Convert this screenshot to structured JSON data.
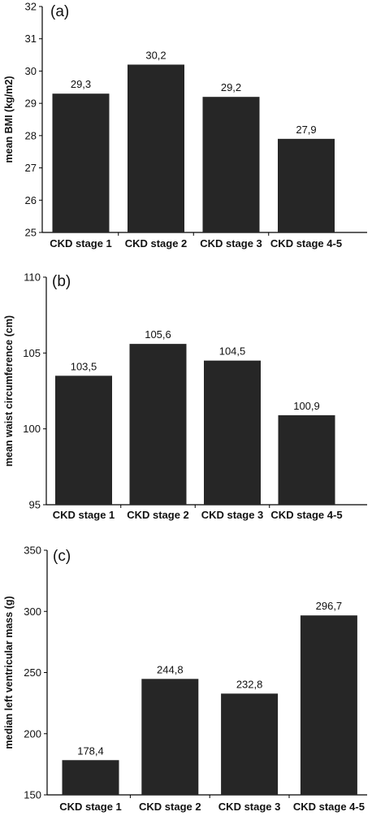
{
  "chart_data": [
    {
      "type": "bar",
      "panel_label": "(a)",
      "ylabel": "mean BMI (kg/m2)",
      "categories": [
        "CKD stage 1",
        "CKD stage 2",
        "CKD stage 3",
        "CKD stage 4-5"
      ],
      "values": [
        29.3,
        30.2,
        29.2,
        27.9
      ],
      "value_labels": [
        "29,3",
        "30,2",
        "29,2",
        "27,9"
      ],
      "ylim": [
        25,
        32
      ],
      "yticks": [
        "25",
        "26",
        "27",
        "28",
        "29",
        "30",
        "31",
        "32"
      ],
      "bar_color": "#262626",
      "grid": false
    },
    {
      "type": "bar",
      "panel_label": "(b)",
      "ylabel": "mean waist circumference (cm)",
      "categories": [
        "CKD stage 1",
        "CKD stage 2",
        "CKD stage 3",
        "CKD stage 4-5"
      ],
      "values": [
        103.5,
        105.6,
        104.5,
        100.9
      ],
      "value_labels": [
        "103,5",
        "105,6",
        "104,5",
        "100,9"
      ],
      "ylim": [
        95,
        110
      ],
      "yticks": [
        "95",
        "100",
        "105",
        "110"
      ],
      "bar_color": "#262626",
      "grid": false
    },
    {
      "type": "bar",
      "panel_label": "(c)",
      "ylabel": "median left ventricular mass (g)",
      "categories": [
        "CKD stage 1",
        "CKD stage 2",
        "CKD stage 3",
        "CKD stage 4-5"
      ],
      "values": [
        178.4,
        244.8,
        232.8,
        296.7
      ],
      "value_labels": [
        "178,4",
        "244,8",
        "232,8",
        "296,7"
      ],
      "ylim": [
        150,
        350
      ],
      "yticks": [
        "150",
        "200",
        "250",
        "300",
        "350"
      ],
      "bar_color": "#262626",
      "grid": false
    }
  ]
}
